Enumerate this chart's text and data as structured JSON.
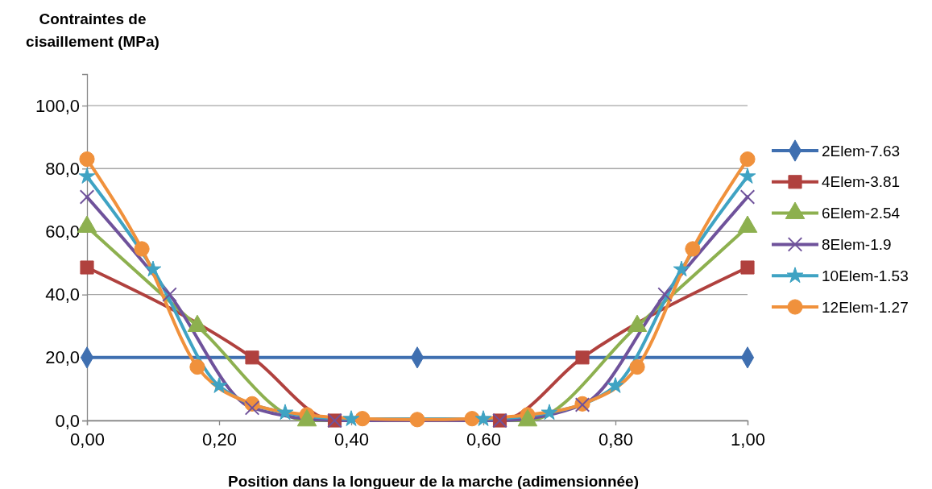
{
  "chart_data": {
    "type": "line",
    "ylabel": "Contraintes de cisaillement (MPa)",
    "xlabel": "Position dans la longueur de la marche (adimensionnée)",
    "xlim": [
      0,
      1
    ],
    "xticks": [
      {
        "value": 0,
        "label": "0,00"
      },
      {
        "value": 0.2,
        "label": "0,20"
      },
      {
        "value": 0.4,
        "label": "0,40"
      },
      {
        "value": 0.6,
        "label": "0,60"
      },
      {
        "value": 0.8,
        "label": "0,80"
      },
      {
        "value": 1,
        "label": "1,00"
      }
    ],
    "ylim": [
      0,
      110
    ],
    "yticks": [
      {
        "value": 0,
        "label": "0,0"
      },
      {
        "value": 20,
        "label": "20,0"
      },
      {
        "value": 40,
        "label": "40,0"
      },
      {
        "value": 60,
        "label": "60,0"
      },
      {
        "value": 80,
        "label": "80,0"
      },
      {
        "value": 100,
        "label": "100,0"
      }
    ],
    "grid": "y",
    "legend": "right",
    "series": [
      {
        "name": "2Elem-7.63",
        "color": "#3f6fb0",
        "marker": "diamond",
        "x": [
          0,
          0.5,
          1
        ],
        "values": [
          20,
          20,
          20
        ]
      },
      {
        "name": "4Elem-3.81",
        "color": "#b0413e",
        "marker": "square",
        "x": [
          0,
          0.25,
          0.375,
          0.625,
          0.75,
          1
        ],
        "values": [
          48.6,
          20,
          0,
          0,
          20,
          48.6
        ]
      },
      {
        "name": "6Elem-2.54",
        "color": "#8db04f",
        "marker": "triangle",
        "x": [
          0,
          0.167,
          0.333,
          0.667,
          0.833,
          1
        ],
        "values": [
          61.5,
          30,
          0,
          0,
          30,
          61.5
        ]
      },
      {
        "name": "8Elem-1.9",
        "color": "#6f529b",
        "marker": "cross",
        "x": [
          0,
          0.125,
          0.25,
          0.375,
          0.625,
          0.75,
          0.875,
          1
        ],
        "values": [
          71,
          40,
          4,
          0,
          0,
          5,
          40,
          71
        ]
      },
      {
        "name": "10Elem-1.53",
        "color": "#3fa3c3",
        "marker": "star",
        "x": [
          0,
          0.1,
          0.2,
          0.3,
          0.4,
          0.6,
          0.7,
          0.8,
          0.9,
          1
        ],
        "values": [
          77.5,
          48,
          11,
          2.5,
          0.5,
          0.5,
          2.5,
          11,
          48,
          77.5
        ]
      },
      {
        "name": "12Elem-1.27",
        "color": "#f0913c",
        "marker": "circle",
        "x": [
          0,
          0.083,
          0.167,
          0.25,
          0.333,
          0.417,
          0.5,
          0.583,
          0.667,
          0.75,
          0.833,
          0.917,
          1
        ],
        "values": [
          83,
          54.5,
          17,
          5.3,
          1.8,
          0.6,
          0.3,
          0.6,
          1.8,
          5.3,
          17,
          54.5,
          83
        ]
      }
    ]
  }
}
